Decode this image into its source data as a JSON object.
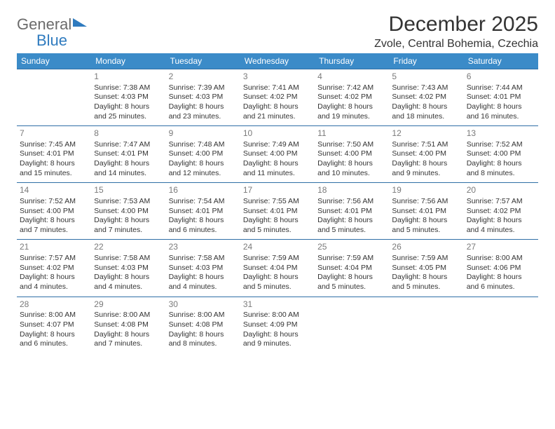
{
  "logo": {
    "text1": "General",
    "text2": "Blue"
  },
  "header": {
    "month_title": "December 2025",
    "location": "Zvole, Central Bohemia, Czechia"
  },
  "colors": {
    "header_bg": "#3b8bc8",
    "header_text": "#ffffff",
    "row_border": "#2f6fa6",
    "daynum": "#7a7a7a",
    "body_text": "#333333",
    "logo_gray": "#6b6b6b",
    "logo_blue": "#2f7bbf"
  },
  "weekdays": [
    "Sunday",
    "Monday",
    "Tuesday",
    "Wednesday",
    "Thursday",
    "Friday",
    "Saturday"
  ],
  "weeks": [
    [
      null,
      {
        "n": "1",
        "sr": "Sunrise: 7:38 AM",
        "ss": "Sunset: 4:03 PM",
        "d1": "Daylight: 8 hours",
        "d2": "and 25 minutes."
      },
      {
        "n": "2",
        "sr": "Sunrise: 7:39 AM",
        "ss": "Sunset: 4:03 PM",
        "d1": "Daylight: 8 hours",
        "d2": "and 23 minutes."
      },
      {
        "n": "3",
        "sr": "Sunrise: 7:41 AM",
        "ss": "Sunset: 4:02 PM",
        "d1": "Daylight: 8 hours",
        "d2": "and 21 minutes."
      },
      {
        "n": "4",
        "sr": "Sunrise: 7:42 AM",
        "ss": "Sunset: 4:02 PM",
        "d1": "Daylight: 8 hours",
        "d2": "and 19 minutes."
      },
      {
        "n": "5",
        "sr": "Sunrise: 7:43 AM",
        "ss": "Sunset: 4:02 PM",
        "d1": "Daylight: 8 hours",
        "d2": "and 18 minutes."
      },
      {
        "n": "6",
        "sr": "Sunrise: 7:44 AM",
        "ss": "Sunset: 4:01 PM",
        "d1": "Daylight: 8 hours",
        "d2": "and 16 minutes."
      }
    ],
    [
      {
        "n": "7",
        "sr": "Sunrise: 7:45 AM",
        "ss": "Sunset: 4:01 PM",
        "d1": "Daylight: 8 hours",
        "d2": "and 15 minutes."
      },
      {
        "n": "8",
        "sr": "Sunrise: 7:47 AM",
        "ss": "Sunset: 4:01 PM",
        "d1": "Daylight: 8 hours",
        "d2": "and 14 minutes."
      },
      {
        "n": "9",
        "sr": "Sunrise: 7:48 AM",
        "ss": "Sunset: 4:00 PM",
        "d1": "Daylight: 8 hours",
        "d2": "and 12 minutes."
      },
      {
        "n": "10",
        "sr": "Sunrise: 7:49 AM",
        "ss": "Sunset: 4:00 PM",
        "d1": "Daylight: 8 hours",
        "d2": "and 11 minutes."
      },
      {
        "n": "11",
        "sr": "Sunrise: 7:50 AM",
        "ss": "Sunset: 4:00 PM",
        "d1": "Daylight: 8 hours",
        "d2": "and 10 minutes."
      },
      {
        "n": "12",
        "sr": "Sunrise: 7:51 AM",
        "ss": "Sunset: 4:00 PM",
        "d1": "Daylight: 8 hours",
        "d2": "and 9 minutes."
      },
      {
        "n": "13",
        "sr": "Sunrise: 7:52 AM",
        "ss": "Sunset: 4:00 PM",
        "d1": "Daylight: 8 hours",
        "d2": "and 8 minutes."
      }
    ],
    [
      {
        "n": "14",
        "sr": "Sunrise: 7:52 AM",
        "ss": "Sunset: 4:00 PM",
        "d1": "Daylight: 8 hours",
        "d2": "and 7 minutes."
      },
      {
        "n": "15",
        "sr": "Sunrise: 7:53 AM",
        "ss": "Sunset: 4:00 PM",
        "d1": "Daylight: 8 hours",
        "d2": "and 7 minutes."
      },
      {
        "n": "16",
        "sr": "Sunrise: 7:54 AM",
        "ss": "Sunset: 4:01 PM",
        "d1": "Daylight: 8 hours",
        "d2": "and 6 minutes."
      },
      {
        "n": "17",
        "sr": "Sunrise: 7:55 AM",
        "ss": "Sunset: 4:01 PM",
        "d1": "Daylight: 8 hours",
        "d2": "and 5 minutes."
      },
      {
        "n": "18",
        "sr": "Sunrise: 7:56 AM",
        "ss": "Sunset: 4:01 PM",
        "d1": "Daylight: 8 hours",
        "d2": "and 5 minutes."
      },
      {
        "n": "19",
        "sr": "Sunrise: 7:56 AM",
        "ss": "Sunset: 4:01 PM",
        "d1": "Daylight: 8 hours",
        "d2": "and 5 minutes."
      },
      {
        "n": "20",
        "sr": "Sunrise: 7:57 AM",
        "ss": "Sunset: 4:02 PM",
        "d1": "Daylight: 8 hours",
        "d2": "and 4 minutes."
      }
    ],
    [
      {
        "n": "21",
        "sr": "Sunrise: 7:57 AM",
        "ss": "Sunset: 4:02 PM",
        "d1": "Daylight: 8 hours",
        "d2": "and 4 minutes."
      },
      {
        "n": "22",
        "sr": "Sunrise: 7:58 AM",
        "ss": "Sunset: 4:03 PM",
        "d1": "Daylight: 8 hours",
        "d2": "and 4 minutes."
      },
      {
        "n": "23",
        "sr": "Sunrise: 7:58 AM",
        "ss": "Sunset: 4:03 PM",
        "d1": "Daylight: 8 hours",
        "d2": "and 4 minutes."
      },
      {
        "n": "24",
        "sr": "Sunrise: 7:59 AM",
        "ss": "Sunset: 4:04 PM",
        "d1": "Daylight: 8 hours",
        "d2": "and 5 minutes."
      },
      {
        "n": "25",
        "sr": "Sunrise: 7:59 AM",
        "ss": "Sunset: 4:04 PM",
        "d1": "Daylight: 8 hours",
        "d2": "and 5 minutes."
      },
      {
        "n": "26",
        "sr": "Sunrise: 7:59 AM",
        "ss": "Sunset: 4:05 PM",
        "d1": "Daylight: 8 hours",
        "d2": "and 5 minutes."
      },
      {
        "n": "27",
        "sr": "Sunrise: 8:00 AM",
        "ss": "Sunset: 4:06 PM",
        "d1": "Daylight: 8 hours",
        "d2": "and 6 minutes."
      }
    ],
    [
      {
        "n": "28",
        "sr": "Sunrise: 8:00 AM",
        "ss": "Sunset: 4:07 PM",
        "d1": "Daylight: 8 hours",
        "d2": "and 6 minutes."
      },
      {
        "n": "29",
        "sr": "Sunrise: 8:00 AM",
        "ss": "Sunset: 4:08 PM",
        "d1": "Daylight: 8 hours",
        "d2": "and 7 minutes."
      },
      {
        "n": "30",
        "sr": "Sunrise: 8:00 AM",
        "ss": "Sunset: 4:08 PM",
        "d1": "Daylight: 8 hours",
        "d2": "and 8 minutes."
      },
      {
        "n": "31",
        "sr": "Sunrise: 8:00 AM",
        "ss": "Sunset: 4:09 PM",
        "d1": "Daylight: 8 hours",
        "d2": "and 9 minutes."
      },
      null,
      null,
      null
    ]
  ]
}
